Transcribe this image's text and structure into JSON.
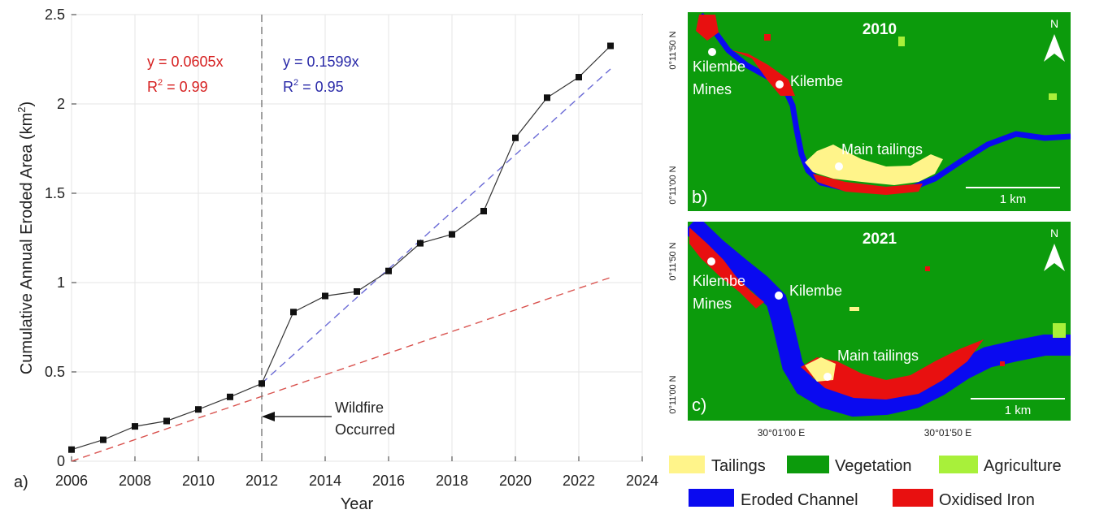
{
  "chart_data": {
    "type": "line",
    "panel_label": "a)",
    "xlabel": "Year",
    "ylabel": "Cumulative Annual Eroded Area (km",
    "ylabel_sup": "2",
    "ylabel_close": ")",
    "xlim": [
      2006,
      2024
    ],
    "ylim": [
      0,
      2.5
    ],
    "xticks": [
      "2006",
      "2008",
      "2010",
      "2012",
      "2014",
      "2016",
      "2018",
      "2020",
      "2022",
      "2024"
    ],
    "yticks": [
      "0",
      "0.5",
      "1",
      "1.5",
      "2",
      "2.5"
    ],
    "grid": true,
    "series": [
      {
        "x": [
          2006,
          2007,
          2008,
          2009,
          2010,
          2011,
          2012,
          2013,
          2014,
          2015,
          2016,
          2017,
          2018,
          2019,
          2020,
          2021,
          2022,
          2023
        ],
        "y": [
          0.065,
          0.12,
          0.195,
          0.225,
          0.29,
          0.36,
          0.435,
          0.835,
          0.925,
          0.95,
          1.065,
          1.22,
          1.27,
          1.4,
          1.81,
          2.035,
          2.15,
          2.325
        ],
        "color": "#333333",
        "marker": "square"
      }
    ],
    "fits": [
      {
        "slope": 0.0605,
        "x_range": [
          2006,
          2023
        ],
        "color": "#d9534f",
        "equation": "y = 0.0605x",
        "r2_prefix": "R",
        "r2_sup": "2",
        "r2_value": " = 0.99"
      },
      {
        "slope": 0.1599,
        "origin_x": 2009.27,
        "x_range": [
          2012,
          2023
        ],
        "color": "#6b6bd6",
        "equation": "y = 0.1599x",
        "r2_prefix": "R",
        "r2_sup": "2",
        "r2_value": " = 0.95"
      }
    ],
    "vline": {
      "x": 2012,
      "color": "#777777"
    },
    "annotation": {
      "line1": "Wildfire",
      "line2": "Occurred",
      "x": 2012,
      "y": 0.25
    }
  },
  "maps": [
    {
      "year": "2010",
      "panel": "b)",
      "north": "N",
      "scale": "1 km",
      "lat_top": "0°11'50 N",
      "lat_bottom": "0°11'00 N",
      "places": [
        {
          "line1": "Kilembe",
          "line2": "Mines"
        },
        {
          "line1": "Kilembe",
          "line2": ""
        },
        {
          "line1": "Main tailings",
          "line2": ""
        }
      ]
    },
    {
      "year": "2021",
      "panel": "c)",
      "north": "N",
      "scale": "1 km",
      "lat_top": "0°11'50 N",
      "lat_bottom": "0°11'00 N",
      "lon_left": "30°01'00 E",
      "lon_right": "30°01'50 E",
      "places": [
        {
          "line1": "Kilembe",
          "line2": "Mines"
        },
        {
          "line1": "Kilembe",
          "line2": ""
        },
        {
          "line1": "Main tailings",
          "line2": ""
        }
      ]
    }
  ],
  "legend": [
    {
      "label": "Tailings",
      "color": "#fff48a"
    },
    {
      "label": "Vegetation",
      "color": "#0c9b0c"
    },
    {
      "label": "Agriculture",
      "color": "#a8f03a"
    },
    {
      "label": "Eroded Channel",
      "color": "#0a0af0"
    },
    {
      "label": "Oxidised Iron",
      "color": "#e81010"
    }
  ]
}
